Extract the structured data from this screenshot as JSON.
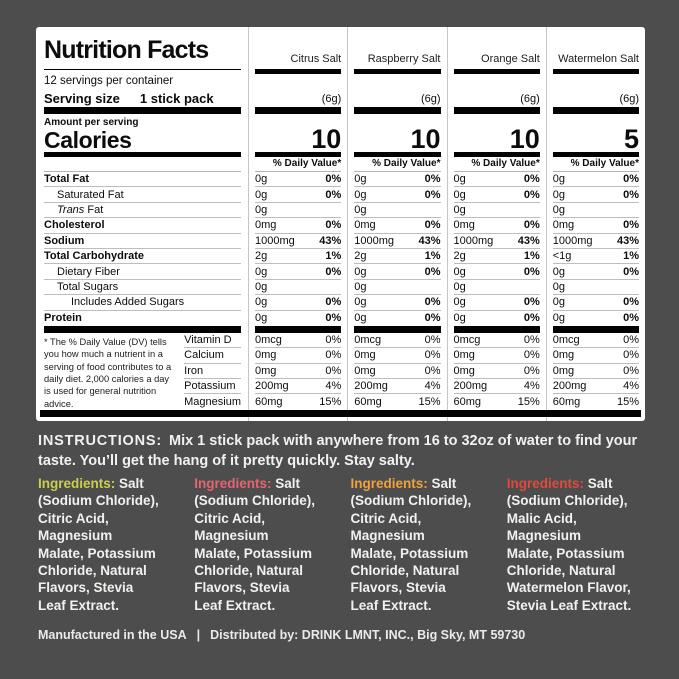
{
  "colors": {
    "background": "#4e4d4d",
    "panel_background": "#ffffff",
    "panel_text": "#0c0c0c",
    "gray_area_text": "#f2f1ef"
  },
  "panel": {
    "title": "Nutrition Facts",
    "servings_per_container": "12 servings per container",
    "serving_size_label": "Serving size",
    "serving_size_value": "1 stick pack",
    "amount_per_serving": "Amount per serving",
    "calories_label": "Calories",
    "daily_value_header": "% Daily Value*",
    "flavors": [
      {
        "name": "Citrus Salt",
        "serving_weight": "(6g)",
        "calories": "10"
      },
      {
        "name": "Raspberry Salt",
        "serving_weight": "(6g)",
        "calories": "10"
      },
      {
        "name": "Orange Salt",
        "serving_weight": "(6g)",
        "calories": "10"
      },
      {
        "name": "Watermelon Salt",
        "serving_weight": "(6g)",
        "calories": "5"
      }
    ],
    "nutrients": [
      {
        "name": "Total Fat",
        "bold": true,
        "indent": 0,
        "values": [
          "0g",
          "0g",
          "0g",
          "0g"
        ],
        "dv": [
          "0%",
          "0%",
          "0%",
          "0%"
        ]
      },
      {
        "name": "Saturated Fat",
        "bold": false,
        "indent": 1,
        "values": [
          "0g",
          "0g",
          "0g",
          "0g"
        ],
        "dv": [
          "0%",
          "0%",
          "0%",
          "0%"
        ]
      },
      {
        "name": " Fat",
        "name_italic_prefix": "Trans",
        "bold": false,
        "indent": 1,
        "values": [
          "0g",
          "0g",
          "0g",
          "0g"
        ],
        "dv": [
          "",
          "",
          "",
          ""
        ]
      },
      {
        "name": "Cholesterol",
        "bold": true,
        "indent": 0,
        "values": [
          "0mg",
          "0mg",
          "0mg",
          "0mg"
        ],
        "dv": [
          "0%",
          "0%",
          "0%",
          "0%"
        ]
      },
      {
        "name": "Sodium",
        "bold": true,
        "indent": 0,
        "values": [
          "1000mg",
          "1000mg",
          "1000mg",
          "1000mg"
        ],
        "dv": [
          "43%",
          "43%",
          "43%",
          "43%"
        ]
      },
      {
        "name": "Total Carbohydrate",
        "bold": true,
        "indent": 0,
        "values": [
          "2g",
          "2g",
          "2g",
          "<1g"
        ],
        "dv": [
          "1%",
          "1%",
          "1%",
          "1%"
        ]
      },
      {
        "name": "Dietary Fiber",
        "bold": false,
        "indent": 1,
        "values": [
          "0g",
          "0g",
          "0g",
          "0g"
        ],
        "dv": [
          "0%",
          "0%",
          "0%",
          "0%"
        ]
      },
      {
        "name": "Total Sugars",
        "bold": false,
        "indent": 1,
        "values": [
          "0g",
          "0g",
          "0g",
          "0g"
        ],
        "dv": [
          "",
          "",
          "",
          ""
        ]
      },
      {
        "name": "Includes Added Sugars",
        "bold": false,
        "indent": 2,
        "values": [
          "0g",
          "0g",
          "0g",
          "0g"
        ],
        "dv": [
          "0%",
          "0%",
          "0%",
          "0%"
        ]
      },
      {
        "name": "Protein",
        "bold": true,
        "indent": 0,
        "values": [
          "0g",
          "0g",
          "0g",
          "0g"
        ],
        "dv": [
          "0%",
          "0%",
          "0%",
          "0%"
        ]
      }
    ],
    "micronutrients": [
      {
        "name": "Vitamin D",
        "values": [
          "0mcg",
          "0mcg",
          "0mcg",
          "0mcg"
        ],
        "dv": [
          "0%",
          "0%",
          "0%",
          "0%"
        ]
      },
      {
        "name": "Calcium",
        "values": [
          "0mg",
          "0mg",
          "0mg",
          "0mg"
        ],
        "dv": [
          "0%",
          "0%",
          "0%",
          "0%"
        ]
      },
      {
        "name": "Iron",
        "values": [
          "0mg",
          "0mg",
          "0mg",
          "0mg"
        ],
        "dv": [
          "0%",
          "0%",
          "0%",
          "0%"
        ]
      },
      {
        "name": "Potassium",
        "values": [
          "200mg",
          "200mg",
          "200mg",
          "200mg"
        ],
        "dv": [
          "4%",
          "4%",
          "4%",
          "4%"
        ]
      },
      {
        "name": "Magnesium",
        "values": [
          "60mg",
          "60mg",
          "60mg",
          "60mg"
        ],
        "dv": [
          "15%",
          "15%",
          "15%",
          "15%"
        ]
      }
    ],
    "footnote": "* The % Daily Value (DV) tells you how much a nutrient in a serving of food contributes to a daily diet. 2,000 calories a day is used for general nutrition advice."
  },
  "instructions": {
    "heading": "INSTRUCTIONS:",
    "text": "Mix 1 stick pack with anywhere from 16 to 32oz of water to find your taste. You’ll get the hang of it pretty quickly. Stay salty."
  },
  "ingredients": [
    {
      "flavor": "Citrus Salt",
      "heading": "Ingredients:",
      "heading_color": "#c9cf4d",
      "lines": [
        "Salt",
        "(Sodium Chloride),",
        "Citric Acid,",
        "Magnesium",
        "Malate, Potassium",
        "Chloride, Natural",
        "Flavors, Stevia",
        "Leaf Extract."
      ]
    },
    {
      "flavor": "Raspberry Salt",
      "heading": "Ingredients:",
      "heading_color": "#e5656f",
      "lines": [
        "Salt",
        "(Sodium Chloride),",
        "Citric Acid,",
        "Magnesium",
        "Malate, Potassium",
        "Chloride, Natural",
        "Flavors, Stevia",
        "Leaf Extract."
      ]
    },
    {
      "flavor": "Orange Salt",
      "heading": "Ingredients:",
      "heading_color": "#f0a23b",
      "lines": [
        "Salt",
        "(Sodium Chloride),",
        "Citric Acid,",
        "Magnesium",
        "Malate, Potassium",
        "Chloride, Natural",
        "Flavors, Stevia",
        "Leaf Extract."
      ]
    },
    {
      "flavor": "Watermelon Salt",
      "heading": "Ingredients:",
      "heading_color": "#df4a3d",
      "lines": [
        "Salt",
        "(Sodium Chloride),",
        "Malic Acid,",
        "Magnesium",
        "Malate, Potassium",
        "Chloride, Natural",
        "Watermelon Flavor,",
        "Stevia Leaf Extract."
      ]
    }
  ],
  "footer": {
    "left": "Manufactured in the USA",
    "divider": "|",
    "right": "Distributed by: DRINK LMNT, INC., Big Sky, MT 59730"
  }
}
